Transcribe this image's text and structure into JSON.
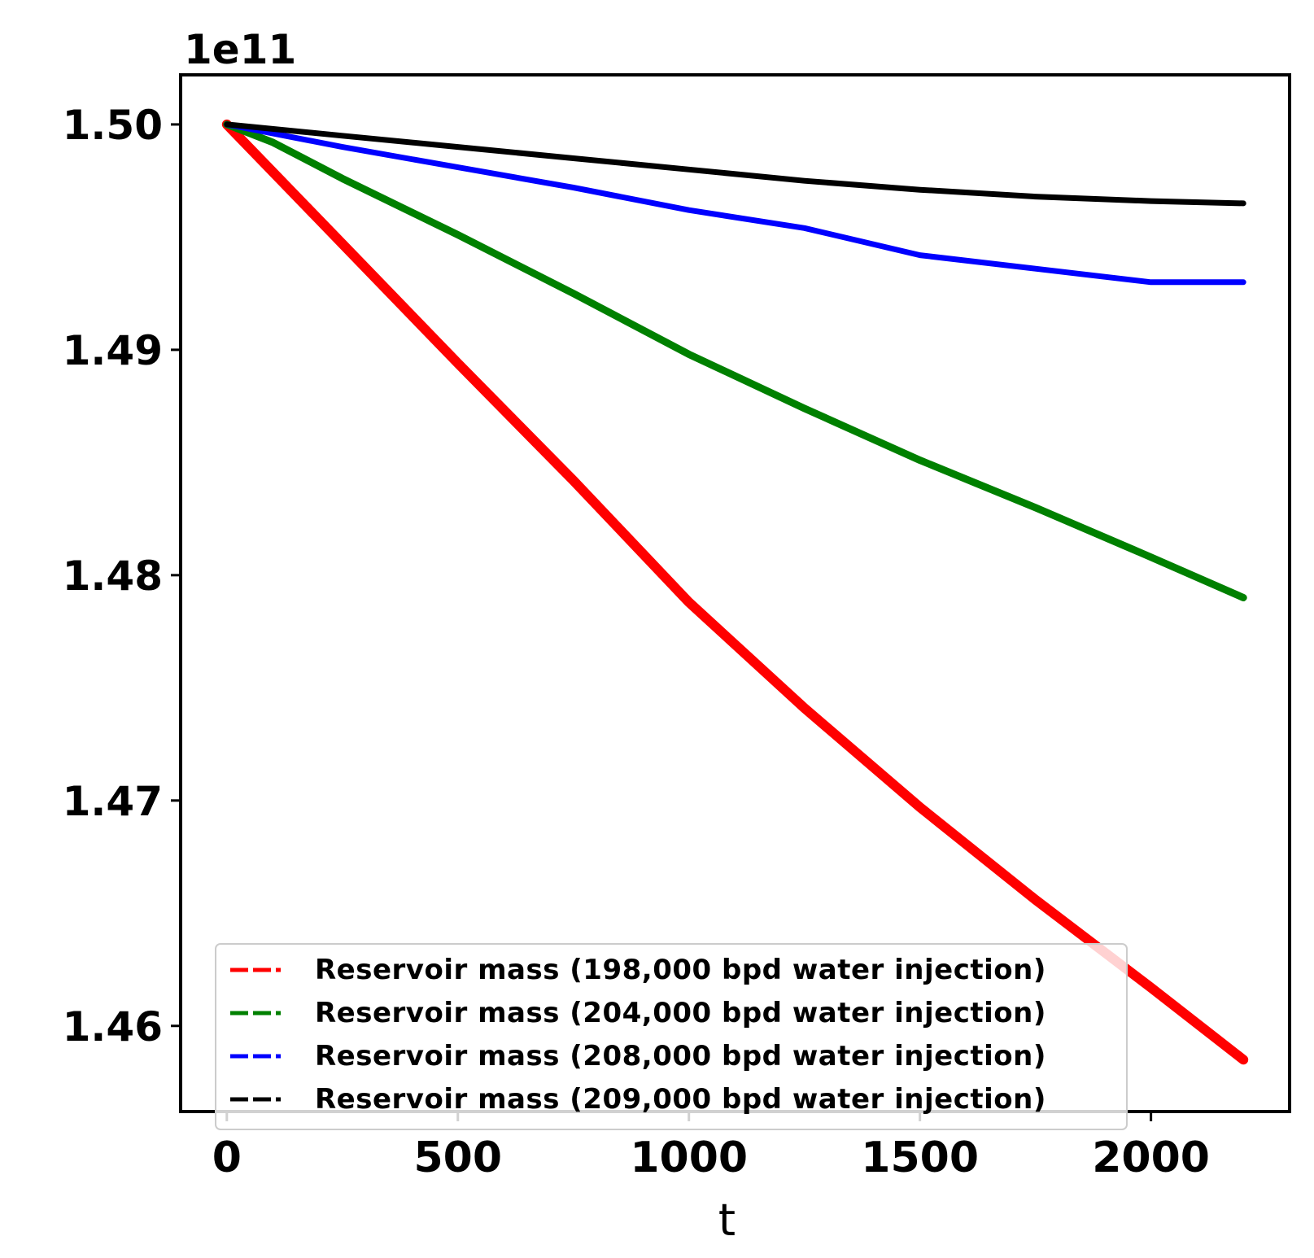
{
  "chart_data": {
    "type": "line",
    "title": "",
    "xlabel": "t",
    "ylabel": "",
    "y_offset_label": "1e11",
    "xlim": [
      -100,
      2300
    ],
    "ylim": [
      1.4562,
      1.5022
    ],
    "x_ticks": [
      0,
      500,
      1000,
      1500,
      2000
    ],
    "x_tick_labels": [
      "0",
      "500",
      "1000",
      "1500",
      "2000"
    ],
    "y_ticks": [
      1.46,
      1.47,
      1.48,
      1.49,
      1.5
    ],
    "y_tick_labels": [
      "1.46",
      "1.47",
      "1.48",
      "1.49",
      "1.50"
    ],
    "legend_position": "bottom-left",
    "series": [
      {
        "name": "Reservoir mass (198,000 bpd water injection)",
        "color": "#ff0000",
        "x": [
          0,
          250,
          500,
          750,
          1000,
          1250,
          1500,
          1750,
          2000,
          2200
        ],
        "values": [
          1.5,
          1.4947,
          1.4894,
          1.4842,
          1.4788,
          1.4741,
          1.4697,
          1.4656,
          1.4617,
          1.4585
        ]
      },
      {
        "name": "Reservoir mass (204,000 bpd water injection)",
        "color": "#008000",
        "x": [
          0,
          100,
          250,
          500,
          750,
          1000,
          1250,
          1500,
          1750,
          2000,
          2200
        ],
        "values": [
          1.5,
          1.4992,
          1.4976,
          1.4951,
          1.4925,
          1.4898,
          1.4874,
          1.4851,
          1.483,
          1.4808,
          1.479
        ]
      },
      {
        "name": "Reservoir mass (208,000 bpd water injection)",
        "color": "#0000ff",
        "x": [
          0,
          250,
          500,
          750,
          1000,
          1250,
          1500,
          1750,
          2000,
          2200
        ],
        "values": [
          1.5,
          1.499,
          1.4981,
          1.4972,
          1.4962,
          1.4954,
          1.4942,
          1.4936,
          1.493,
          1.493
        ]
      },
      {
        "name": "Reservoir mass (209,000 bpd water injection)",
        "color": "#000000",
        "x": [
          0,
          250,
          500,
          750,
          1000,
          1250,
          1500,
          1750,
          2000,
          2200
        ],
        "values": [
          1.5,
          1.4995,
          1.499,
          1.4985,
          1.498,
          1.4975,
          1.4971,
          1.4968,
          1.4966,
          1.4965
        ]
      }
    ]
  }
}
